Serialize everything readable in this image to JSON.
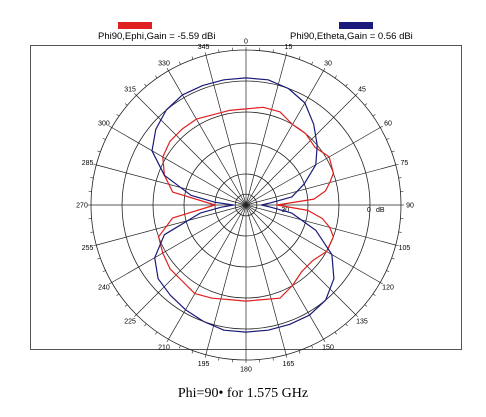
{
  "chart_data": {
    "type": "polar",
    "caption": "Phi=90•  for 1.575 GHz",
    "legend": [
      {
        "label": "Phi90,Ephi,Gain = -5.59 dBi",
        "color": "#e02020"
      },
      {
        "label": "Phi90,Etheta,Gain = 0.56 dBi",
        "color": "#1a1a7a"
      }
    ],
    "angle_ticks": [
      "0",
      "15",
      "30",
      "45",
      "60",
      "75",
      "90",
      "105",
      "120",
      "135",
      "150",
      "165",
      "180",
      "195",
      "210",
      "225",
      "240",
      "255",
      "270",
      "285",
      "300",
      "315",
      "330",
      "345"
    ],
    "radial_labels": [
      "-30",
      "0",
      "dB"
    ],
    "rlim": [
      -40,
      10
    ],
    "series": [
      {
        "name": "Phi90,Ephi,Gain = -5.59 dBi",
        "color": "#e02020",
        "theta": [
          0,
          10,
          20,
          30,
          40,
          50,
          60,
          70,
          75,
          80,
          85,
          90,
          95,
          100,
          105,
          110,
          120,
          130,
          140,
          150,
          160,
          170,
          180,
          190,
          200,
          210,
          220,
          230,
          240,
          250,
          260,
          270,
          280,
          290,
          300,
          310,
          320,
          330,
          340,
          350,
          360
        ],
        "r": [
          -9,
          -8,
          -8,
          -10,
          -10,
          -11,
          -9,
          -10,
          -12,
          -14,
          -18,
          -30,
          -20,
          -15,
          -12,
          -10,
          -10,
          -12,
          -12,
          -10,
          -8,
          -9,
          -9,
          -9,
          -8,
          -7,
          -8,
          -8,
          -9,
          -10,
          -16,
          -30,
          -16,
          -12,
          -9,
          -8,
          -8,
          -8,
          -9,
          -9,
          -9
        ]
      },
      {
        "name": "Phi90,Etheta,Gain = 0.56 dBi",
        "color": "#1a1a7a",
        "theta": [
          0,
          10,
          20,
          30,
          40,
          50,
          60,
          70,
          80,
          85,
          90,
          95,
          100,
          110,
          120,
          130,
          140,
          150,
          160,
          170,
          180,
          190,
          200,
          210,
          220,
          230,
          240,
          250,
          260,
          265,
          270,
          275,
          280,
          290,
          300,
          310,
          320,
          330,
          340,
          350,
          360
        ],
        "r": [
          1,
          1,
          0,
          -2,
          -6,
          -10,
          -14,
          -20,
          -25,
          -32,
          -35,
          -32,
          -25,
          -16,
          -8,
          -3,
          0,
          1,
          1,
          1,
          1,
          1,
          0,
          -1,
          -2,
          -3,
          -6,
          -12,
          -25,
          -32,
          -36,
          -30,
          -22,
          -12,
          -5,
          -2,
          0,
          1,
          1,
          1,
          1
        ]
      }
    ]
  }
}
